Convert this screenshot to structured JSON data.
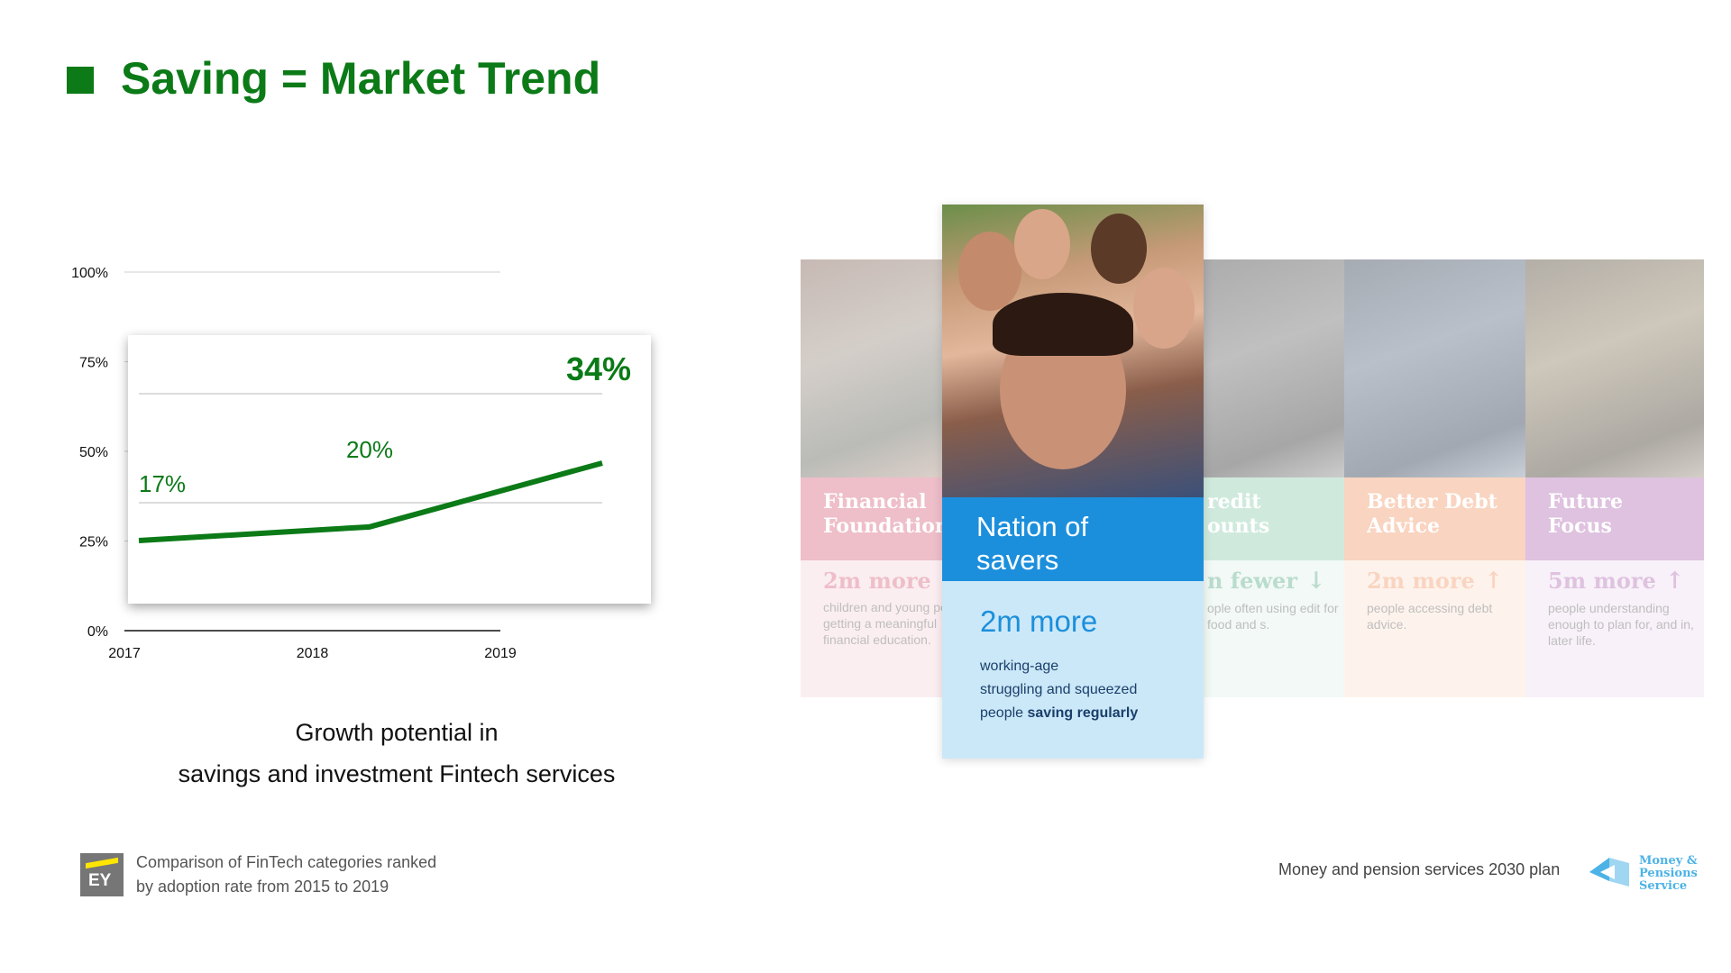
{
  "header": {
    "title": "Saving = Market Trend"
  },
  "colors": {
    "brand_green": "#0b7a17",
    "highlight_blue": "#1c8fdc",
    "highlight_light": "#cbe8f8"
  },
  "chart_data": {
    "type": "line",
    "x": [
      "2017",
      "2018",
      "2019"
    ],
    "ylim": [
      0,
      100
    ],
    "yticks": [
      "0%",
      "25%",
      "50%",
      "75%",
      "100%"
    ],
    "series": [
      {
        "values": [
          17,
          20,
          34
        ]
      }
    ],
    "data_labels": [
      "17%",
      "20%",
      "34%"
    ],
    "grid": true
  },
  "chart": {
    "caption_line1": "Growth potential in",
    "caption_line2": "savings and investment Fintech services"
  },
  "footer_left": {
    "logo_text": "EY",
    "line1": "Comparison of FinTech categories ranked",
    "line2": "by adoption rate from 2015 to 2019"
  },
  "panels": [
    {
      "title_line1": "Financial",
      "title_line2": "Foundation",
      "stat": "2m more",
      "desc": "children and young people getting a meaningful financial education.",
      "arrow": ""
    },
    {
      "title_line1": "redit",
      "title_line2": "ounts",
      "stat": "n fewer",
      "desc": "ople often using edit for food and s.",
      "arrow": "↓"
    },
    {
      "title_line1": "Better Debt",
      "title_line2": "Advice",
      "stat": "2m more",
      "desc": "people accessing debt advice.",
      "arrow": "↑"
    },
    {
      "title_line1": "Future",
      "title_line2": "Focus",
      "stat": "5m more",
      "desc": "people understanding enough to plan for, and in, later life.",
      "arrow": "↑"
    }
  ],
  "highlight": {
    "title_line1": "Nation of",
    "title_line2": "savers",
    "stat": "2m more",
    "desc_line1": "working-age",
    "desc_line2": "struggling and squeezed",
    "desc_line3_prefix": "people ",
    "desc_line3_bold": "saving regularly"
  },
  "footer_right": {
    "text": "Money and pension services 2030 plan",
    "logo_line1": "Money &",
    "logo_line2": "Pensions",
    "logo_line3": "Service"
  }
}
